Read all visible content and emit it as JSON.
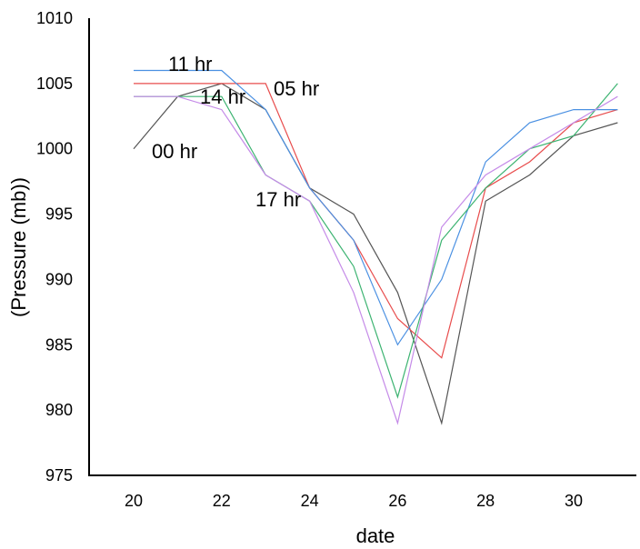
{
  "chart_data": {
    "type": "line",
    "title": "",
    "xlabel": "date",
    "ylabel": "(Pressure (mb))",
    "xlim": [
      19,
      31.2
    ],
    "ylim": [
      975,
      1010
    ],
    "xticks": [
      20,
      22,
      24,
      26,
      28,
      30
    ],
    "yticks": [
      975,
      980,
      985,
      990,
      995,
      1000,
      1005,
      1010
    ],
    "grid": false,
    "legend": "none",
    "series": [
      {
        "name": "00 hr",
        "color": "#555555",
        "x": [
          20,
          21,
          22,
          23,
          24,
          25,
          26,
          27,
          28,
          29,
          30,
          31
        ],
        "values": [
          1000,
          1004,
          1005,
          1003,
          997,
          995,
          989,
          979,
          996,
          998,
          1001,
          1002
        ]
      },
      {
        "name": "05 hr",
        "color": "#e84c4c",
        "x": [
          20,
          21,
          22,
          23,
          24,
          25,
          26,
          27,
          28,
          29,
          30,
          31
        ],
        "values": [
          1005,
          1005,
          1005,
          1005,
          997,
          993,
          987,
          984,
          997,
          999,
          1002,
          1003
        ]
      },
      {
        "name": "11 hr",
        "color": "#4a90e2",
        "x": [
          20,
          21,
          22,
          23,
          24,
          25,
          26,
          27,
          28,
          29,
          30,
          31
        ],
        "values": [
          1006,
          1006,
          1006,
          1003,
          997,
          993,
          985,
          990,
          999,
          1002,
          1003,
          1003
        ]
      },
      {
        "name": "14 hr",
        "color": "#3cb371",
        "x": [
          20,
          21,
          22,
          23,
          24,
          25,
          26,
          27,
          28,
          29,
          30,
          31
        ],
        "values": [
          1004,
          1004,
          1004,
          998,
          996,
          991,
          981,
          993,
          997,
          1000,
          1001,
          1005
        ]
      },
      {
        "name": "17 hr",
        "color": "#c58be8",
        "x": [
          20,
          21,
          22,
          23,
          24,
          25,
          26,
          27,
          28,
          29,
          30,
          31
        ],
        "values": [
          1004,
          1004,
          1003,
          998,
          996,
          989,
          979,
          994,
          998,
          1000,
          1002,
          1004
        ]
      }
    ],
    "annotations": [
      {
        "text": "11 hr",
        "series": "11 hr"
      },
      {
        "text": "05 hr",
        "series": "05 hr"
      },
      {
        "text": "14 hr",
        "series": "14 hr"
      },
      {
        "text": "00 hr",
        "series": "00 hr"
      },
      {
        "text": "17 hr",
        "series": "17 hr"
      }
    ]
  }
}
